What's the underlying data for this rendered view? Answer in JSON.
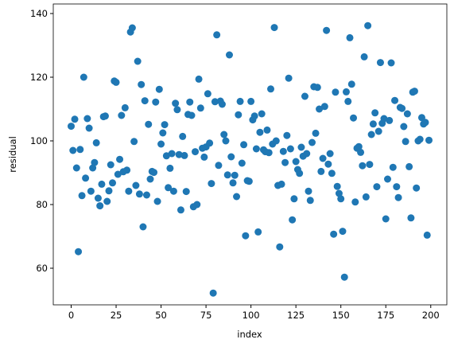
{
  "chart_data": {
    "type": "scatter",
    "xlabel": "index",
    "ylabel": "residual",
    "color": "#1f77b4",
    "xlim": [
      -9.95,
      208.95
    ],
    "ylim": [
      48.5,
      143
    ],
    "xticks": [
      0,
      25,
      50,
      75,
      100,
      125,
      150,
      175,
      200
    ],
    "yticks": [
      60,
      80,
      100,
      120,
      140
    ],
    "x": [
      0,
      1,
      2,
      3,
      4,
      5,
      6,
      7,
      8,
      9,
      10,
      11,
      12,
      13,
      14,
      15,
      16,
      17,
      18,
      19,
      20,
      21,
      22,
      23,
      24,
      25,
      26,
      27,
      28,
      29,
      30,
      31,
      32,
      33,
      34,
      35,
      36,
      37,
      38,
      39,
      40,
      41,
      42,
      43,
      44,
      45,
      46,
      47,
      48,
      49,
      50,
      51,
      52,
      53,
      54,
      55,
      56,
      57,
      58,
      59,
      60,
      61,
      62,
      63,
      64,
      65,
      66,
      67,
      68,
      69,
      70,
      71,
      72,
      73,
      74,
      75,
      76,
      77,
      78,
      79,
      80,
      81,
      82,
      83,
      84,
      85,
      86,
      87,
      88,
      89,
      90,
      91,
      92,
      93,
      94,
      95,
      96,
      97,
      98,
      99,
      100,
      101,
      102,
      103,
      104,
      105,
      106,
      107,
      108,
      109,
      110,
      111,
      112,
      113,
      114,
      115,
      116,
      117,
      118,
      119,
      120,
      121,
      122,
      123,
      124,
      125,
      126,
      127,
      128,
      129,
      130,
      131,
      132,
      133,
      134,
      135,
      136,
      137,
      138,
      139,
      140,
      141,
      142,
      143,
      144,
      145,
      146,
      147,
      148,
      149,
      150,
      151,
      152,
      153,
      154,
      155,
      156,
      157,
      158,
      159,
      160,
      161,
      162,
      163,
      164,
      165,
      166,
      167,
      168,
      169,
      170,
      171,
      172,
      173,
      174,
      175,
      176,
      177,
      178,
      179,
      180,
      181,
      182,
      183,
      184,
      185,
      186,
      187,
      188,
      189,
      190,
      191,
      192,
      193,
      194,
      195,
      196,
      197,
      198,
      199
    ],
    "values": [
      104.6,
      97,
      106.8,
      91.5,
      65.2,
      97.3,
      82.8,
      120,
      88.3,
      107,
      104,
      84.2,
      91.5,
      93.2,
      99.4,
      82,
      79.6,
      86.4,
      107.6,
      107.8,
      81,
      84.3,
      92.5,
      86.8,
      118.8,
      118.4,
      89.5,
      94.2,
      108,
      90.3,
      110.4,
      90.8,
      84.2,
      134.2,
      135.5,
      99.8,
      86,
      125,
      83.3,
      117.7,
      73,
      112.6,
      83,
      105.2,
      88,
      90.4,
      90.1,
      112.2,
      81,
      116.2,
      99,
      102.5,
      105.1,
      95.3,
      85.3,
      91.4,
      96,
      84.2,
      111.8,
      109.8,
      95.7,
      78.3,
      101.4,
      95.4,
      84.1,
      108.3,
      112.2,
      108,
      79.3,
      96.6,
      80,
      119.4,
      110.3,
      97.7,
      94.9,
      98.1,
      114.8,
      99.3,
      86.6,
      52.2,
      112.3,
      133.3,
      92.3,
      112.5,
      111.5,
      102,
      100,
      89.3,
      127,
      95,
      86.8,
      89.2,
      82.5,
      108.2,
      112.4,
      93,
      98.8,
      70.2,
      87.5,
      87.3,
      112.4,
      106.6,
      107.8,
      97.5,
      71.4,
      102.7,
      108.5,
      97.2,
      96.6,
      103.4,
      96.3,
      116.3,
      99,
      135.6,
      100,
      86,
      66.7,
      86.4,
      96.7,
      93.2,
      101.7,
      119.7,
      97.5,
      75.2,
      81.8,
      93.5,
      91,
      89.8,
      98,
      95.2,
      114,
      96,
      84.2,
      81.3,
      99.5,
      117,
      102.4,
      116.8,
      110,
      90.4,
      94.5,
      110.8,
      134.7,
      92.7,
      96,
      89.8,
      70.7,
      115.3,
      85.7,
      83.5,
      81.8,
      71.6,
      57.2,
      115.4,
      112.4,
      132.4,
      117.8,
      107.2,
      80.8,
      97.7,
      98.2,
      96.4,
      92.2,
      126.4,
      82.4,
      136.2,
      92.6,
      102,
      105.3,
      108.8,
      85.6,
      103,
      124.6,
      105.5,
      107,
      75.5,
      88,
      106.4,
      124.5,
      91.7,
      112.7,
      85.6,
      82.2,
      110.5,
      110.2,
      104.5,
      99.8,
      108.5,
      91.9,
      75.8,
      115.3,
      115.6,
      85.2,
      100,
      100.5,
      107.3,
      105.3,
      105.8,
      70.4,
      100.2
    ]
  }
}
